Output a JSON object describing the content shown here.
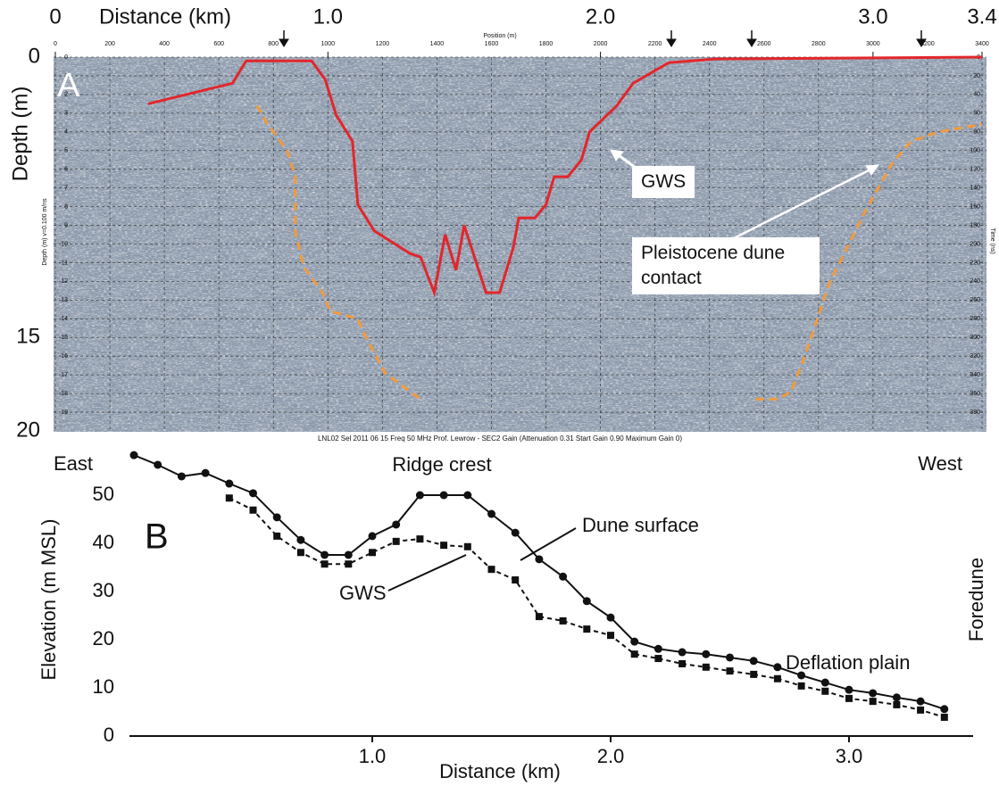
{
  "chart_data": [
    {
      "type": "line",
      "label": "A",
      "xlabel": "Distance (km)",
      "ylabel": "Depth (m)",
      "x2label": "Position (m)",
      "y2label": "Time (ns)",
      "yminor_label": "Depth (m) v=0.100 m/ns",
      "caption": "LNL02 Sel 2011 06 15 Freq 50 MHz Prof. Lewrow - SEC2 Gain (Attenuation 0.31 Start Gain 0.90 Maximum Gain 0)",
      "xlim": [
        0,
        3.4
      ],
      "xticks": [
        0,
        {
          "value": 1,
          "label": "1.0"
        },
        {
          "value": 2,
          "label": "2.0"
        },
        {
          "value": 3,
          "label": "3.0"
        },
        3.4
      ],
      "ylim": [
        0,
        20
      ],
      "y_inverted": true,
      "yticks": [
        0,
        15,
        20
      ],
      "yminorticks": [
        0,
        1,
        2,
        3,
        4,
        5,
        6,
        7,
        8,
        9,
        10,
        11,
        12,
        13,
        14,
        15,
        16,
        17,
        18,
        19
      ],
      "x2lim": [
        0,
        3400
      ],
      "x2ticks": [
        0,
        200,
        400,
        600,
        800,
        1000,
        1200,
        1400,
        1600,
        1800,
        2000,
        2200,
        2400,
        2600,
        2800,
        3000,
        3200,
        3400
      ],
      "y2lim": [
        0,
        400
      ],
      "y2ticks": [
        0,
        20,
        40,
        60,
        80,
        100,
        120,
        140,
        160,
        180,
        200,
        220,
        240,
        260,
        280,
        300,
        320,
        340,
        360,
        380
      ],
      "grid": true,
      "series": [
        {
          "color": "#e3262b",
          "style": "solid",
          "x": [
            0.34,
            0.65,
            0.7,
            0.94,
            0.99,
            1.03,
            1.09,
            1.11,
            1.17,
            1.3,
            1.34,
            1.39,
            1.43,
            1.47,
            1.5,
            1.58,
            1.63,
            1.68,
            1.7,
            1.76,
            1.8,
            1.83,
            1.88,
            1.93,
            1.96,
            2.06,
            2.12,
            2.25,
            2.42,
            3.4
          ],
          "values": [
            2.5,
            1.4,
            0.2,
            0.2,
            1.2,
            3.1,
            4.5,
            7.9,
            9.3,
            10.5,
            10.7,
            12.6,
            9.5,
            11.4,
            9.0,
            12.6,
            12.6,
            10.2,
            8.6,
            8.6,
            7.9,
            6.4,
            6.4,
            5.5,
            4.0,
            2.6,
            1.4,
            0.3,
            0.1,
            0
          ]
        },
        {
          "color": "#f39a3a",
          "style": "dashed",
          "x": [
            0.74,
            0.78,
            0.85,
            0.88,
            0.88,
            0.91,
            0.98,
            1.01,
            1.11,
            1.14,
            1.21,
            1.34,
            null,
            2.57,
            2.65,
            2.7,
            2.75,
            2.84,
            2.97,
            3.07,
            3.14,
            3.24,
            3.4
          ],
          "values": [
            2.6,
            3.6,
            5.0,
            6.4,
            9.3,
            11.2,
            12.6,
            13.6,
            14.0,
            15.0,
            16.9,
            18.3,
            null,
            18.3,
            18.3,
            17.9,
            16.0,
            12.1,
            8.3,
            5.7,
            4.5,
            4.0,
            3.6
          ]
        }
      ],
      "annotations": [
        "GWS",
        "Pleistocene dune contact"
      ]
    },
    {
      "type": "line",
      "label": "B",
      "xlabel": "Distance (km)",
      "ylabel": "Elevation (m MSL)",
      "xlim": [
        0,
        3.5
      ],
      "xticks": [
        {
          "value": 1,
          "label": "1.0"
        },
        {
          "value": 2,
          "label": "2.0"
        },
        {
          "value": 3,
          "label": "3.0"
        }
      ],
      "ylim": [
        0,
        60
      ],
      "yticks": [
        0,
        10,
        20,
        30,
        40,
        50
      ],
      "x": [
        0,
        0.1,
        0.2,
        0.3,
        0.4,
        0.5,
        0.6,
        0.7,
        0.8,
        0.9,
        1.0,
        1.1,
        1.2,
        1.3,
        1.4,
        1.5,
        1.6,
        1.7,
        1.8,
        1.9,
        2.0,
        2.1,
        2.2,
        2.3,
        2.4,
        2.5,
        2.6,
        2.7,
        2.8,
        2.9,
        3.0,
        3.1,
        3.2,
        3.3,
        3.4
      ],
      "series": [
        {
          "name": "Dune surface",
          "color": "#111111",
          "marker": "circle",
          "style": "solid",
          "values": [
            58.3,
            56.3,
            53.9,
            54.6,
            52.4,
            50.4,
            45.4,
            40.7,
            37.6,
            37.6,
            41.5,
            43.9,
            50,
            50,
            50,
            46.1,
            42.2,
            36.7,
            33.1,
            28.0,
            24.6,
            19.6,
            18.1,
            17.4,
            17.0,
            16.3,
            15.6,
            14.3,
            12.6,
            11.1,
            9.6,
            8.9,
            8.0,
            7.2,
            5.6
          ]
        },
        {
          "name": "GWS",
          "color": "#111111",
          "marker": "square",
          "style": "dashed",
          "values": [
            null,
            null,
            null,
            null,
            49.4,
            46.9,
            41.5,
            38.1,
            35.7,
            35.7,
            38.1,
            40.4,
            40.9,
            39.6,
            39.3,
            34.6,
            32.4,
            24.8,
            23.9,
            22.2,
            20.9,
            17.0,
            16.1,
            15.0,
            14.3,
            13.5,
            12.8,
            11.9,
            10.4,
            9.3,
            7.8,
            7.2,
            6.5,
            5.4,
            3.9
          ]
        }
      ],
      "annotations": [
        "East",
        "Ridge crest",
        "West",
        "Deflation plain",
        "Foredune"
      ]
    }
  ]
}
